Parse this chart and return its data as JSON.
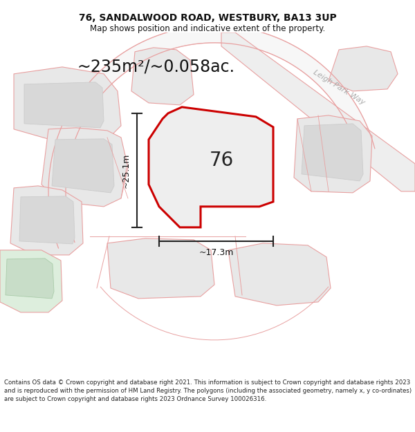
{
  "title": "76, SANDALWOOD ROAD, WESTBURY, BA13 3UP",
  "subtitle": "Map shows position and indicative extent of the property.",
  "area_text": "~235m²/~0.058ac.",
  "number_label": "76",
  "dim_horizontal": "~17.3m",
  "dim_vertical": "~25.1m",
  "road_label": "Leigh Park Way",
  "footer": "Contains OS data © Crown copyright and database right 2021. This information is subject to Crown copyright and database rights 2023 and is reproduced with the permission of HM Land Registry. The polygons (including the associated geometry, namely x, y co-ordinates) are subject to Crown copyright and database rights 2023 Ordnance Survey 100026316.",
  "bg_color": "#ffffff",
  "map_bg": "#ffffff",
  "plot_fill": "#e8e8e8",
  "plot_edge": "#cc0000",
  "surrounding_fill": "#e8e8e8",
  "surrounding_edge": "#e8a0a0",
  "road_fill": "#eeeeee",
  "road_edge": "#e8a0a0",
  "green_fill": "#ddeedd",
  "dim_line_color": "#222222",
  "title_fontsize": 10,
  "subtitle_fontsize": 8.5,
  "area_fontsize": 17,
  "number_fontsize": 20,
  "dim_fontsize": 9,
  "road_label_fontsize": 8,
  "footer_fontsize": 6.2
}
